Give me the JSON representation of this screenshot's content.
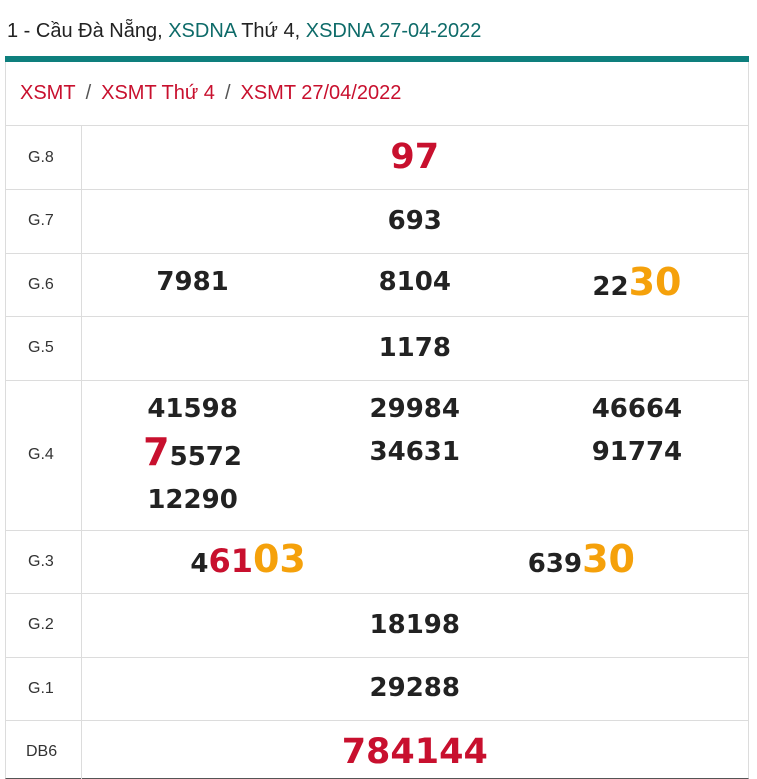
{
  "header": {
    "prefix": "1 - Cầu Đà Nẵng,",
    "link1": "XSDNA",
    "middle": "Thứ 4,",
    "link2": "XSDNA 27-04-2022"
  },
  "breadcrumb": {
    "items": [
      "XSMT",
      "XSMT Thứ 4",
      "XSMT 27/04/2022"
    ],
    "separator": "/"
  },
  "prizes": {
    "g8": {
      "label": "G.8",
      "value": "97"
    },
    "g7": {
      "label": "G.7",
      "value": "693"
    },
    "g6": {
      "label": "G.6",
      "n1": "7981",
      "n2": "8104",
      "n3_head": "22",
      "n3_tail": "30"
    },
    "g5": {
      "label": "G.5",
      "value": "1178"
    },
    "g4": {
      "label": "G.4",
      "col1": {
        "a": "41598",
        "b_head": "7",
        "b_tail": "5572",
        "c": "12290"
      },
      "col2": {
        "a": "29984",
        "b": "34631"
      },
      "col3": {
        "a": "46664",
        "b": "91774"
      }
    },
    "g3": {
      "label": "G.3",
      "n1_a": "4",
      "n1_b": "61",
      "n1_c": "03",
      "n2_head": "639",
      "n2_tail": "30"
    },
    "g2": {
      "label": "G.2",
      "value": "18198"
    },
    "g1": {
      "label": "G.1",
      "value": "29288"
    },
    "db": {
      "label": "DB6",
      "value": "784144"
    }
  },
  "colors": {
    "teal": "#0e7f7d",
    "red": "#c8102e",
    "orange": "#f5a10b"
  }
}
